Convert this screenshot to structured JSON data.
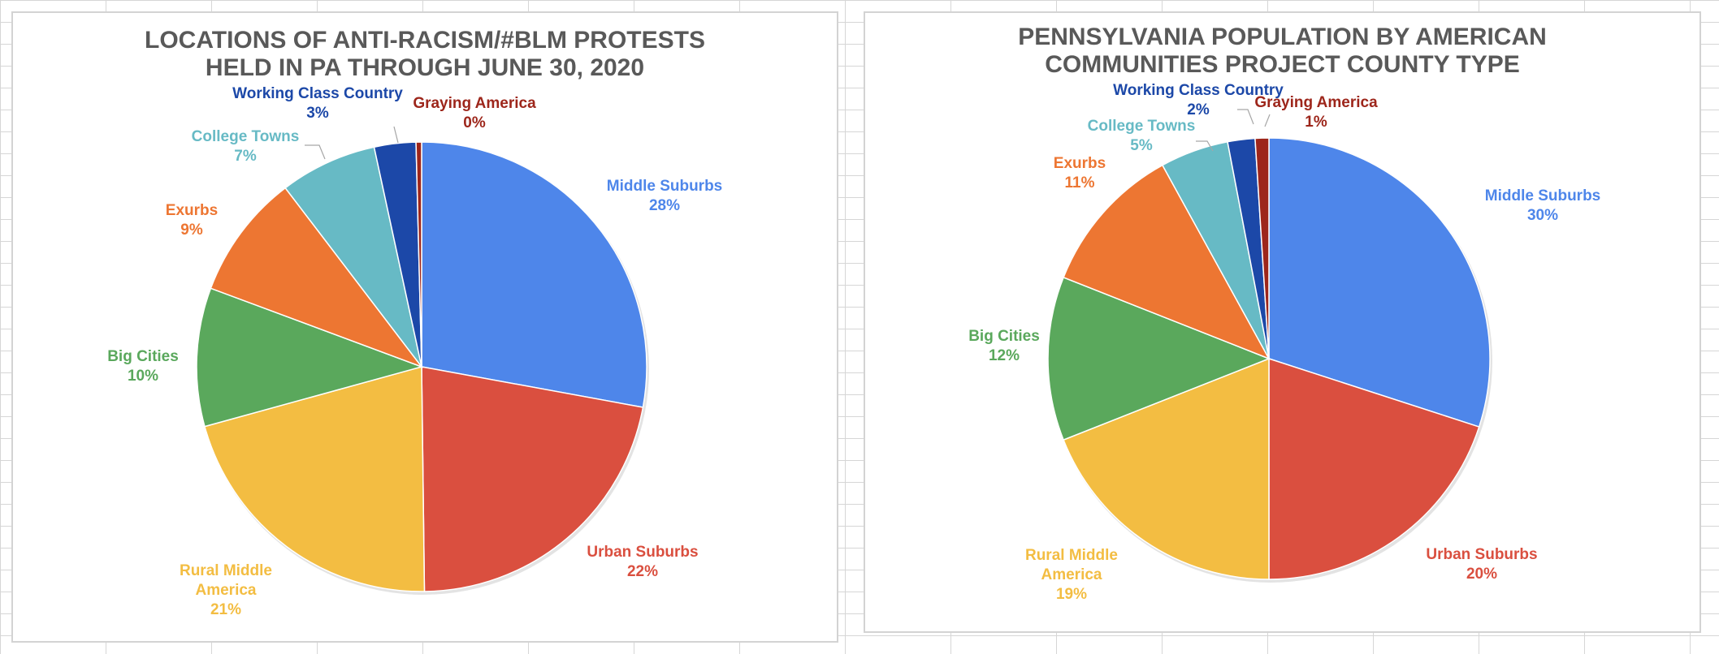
{
  "chart_data": [
    {
      "type": "pie",
      "title": "LOCATIONS OF ANTI-RACISM/#BLM PROTESTS HELD IN PA THROUGH JUNE 30, 2020",
      "title_lines": [
        "LOCATIONS OF ANTI-RACISM/#BLM PROTESTS",
        "HELD IN PA THROUGH JUNE 30, 2020"
      ],
      "slices": [
        {
          "label": "Middle Suburbs",
          "label_lines": [
            "Middle Suburbs"
          ],
          "value": 28,
          "value_label": "28%",
          "color": "#4e86ea"
        },
        {
          "label": "Urban Suburbs",
          "label_lines": [
            "Urban Suburbs"
          ],
          "value": 22,
          "value_label": "22%",
          "color": "#da4f3f"
        },
        {
          "label": "Rural Middle America",
          "label_lines": [
            "Rural Middle",
            "America"
          ],
          "value": 21,
          "value_label": "21%",
          "color": "#f3bd42"
        },
        {
          "label": "Big Cities",
          "label_lines": [
            "Big Cities"
          ],
          "value": 10,
          "value_label": "10%",
          "color": "#5aa85c"
        },
        {
          "label": "Exurbs",
          "label_lines": [
            "Exurbs"
          ],
          "value": 9,
          "value_label": "9%",
          "color": "#ed7632"
        },
        {
          "label": "College Towns",
          "label_lines": [
            "College Towns"
          ],
          "value": 7,
          "value_label": "7%",
          "color": "#67bac5"
        },
        {
          "label": "Working Class Country",
          "label_lines": [
            "Working Class Country"
          ],
          "value": 3,
          "value_label": "3%",
          "color": "#1c48a8"
        },
        {
          "label": "Graying America",
          "label_lines": [
            "Graying America"
          ],
          "value": 0.4,
          "value_label": "0%",
          "color": "#9d261b"
        }
      ]
    },
    {
      "type": "pie",
      "title": "PENNSYLVANIA POPULATION BY AMERICAN COMMUNITIES PROJECT COUNTY TYPE",
      "title_lines": [
        "PENNSYLVANIA POPULATION BY AMERICAN",
        "COMMUNITIES PROJECT COUNTY TYPE"
      ],
      "slices": [
        {
          "label": "Middle Suburbs",
          "label_lines": [
            "Middle Suburbs"
          ],
          "value": 30,
          "value_label": "30%",
          "color": "#4e86ea"
        },
        {
          "label": "Urban Suburbs",
          "label_lines": [
            "Urban Suburbs"
          ],
          "value": 20,
          "value_label": "20%",
          "color": "#da4f3f"
        },
        {
          "label": "Rural Middle America",
          "label_lines": [
            "Rural Middle",
            "America"
          ],
          "value": 19,
          "value_label": "19%",
          "color": "#f3bd42"
        },
        {
          "label": "Big Cities",
          "label_lines": [
            "Big Cities"
          ],
          "value": 12,
          "value_label": "12%",
          "color": "#5aa85c"
        },
        {
          "label": "Exurbs",
          "label_lines": [
            "Exurbs"
          ],
          "value": 11,
          "value_label": "11%",
          "color": "#ed7632"
        },
        {
          "label": "College Towns",
          "label_lines": [
            "College Towns"
          ],
          "value": 5,
          "value_label": "5%",
          "color": "#67bac5"
        },
        {
          "label": "Working Class Country",
          "label_lines": [
            "Working Class Country"
          ],
          "value": 2,
          "value_label": "2%",
          "color": "#1c48a8"
        },
        {
          "label": "Graying America",
          "label_lines": [
            "Graying America"
          ],
          "value": 1,
          "value_label": "1%",
          "color": "#9d261b"
        }
      ]
    }
  ]
}
